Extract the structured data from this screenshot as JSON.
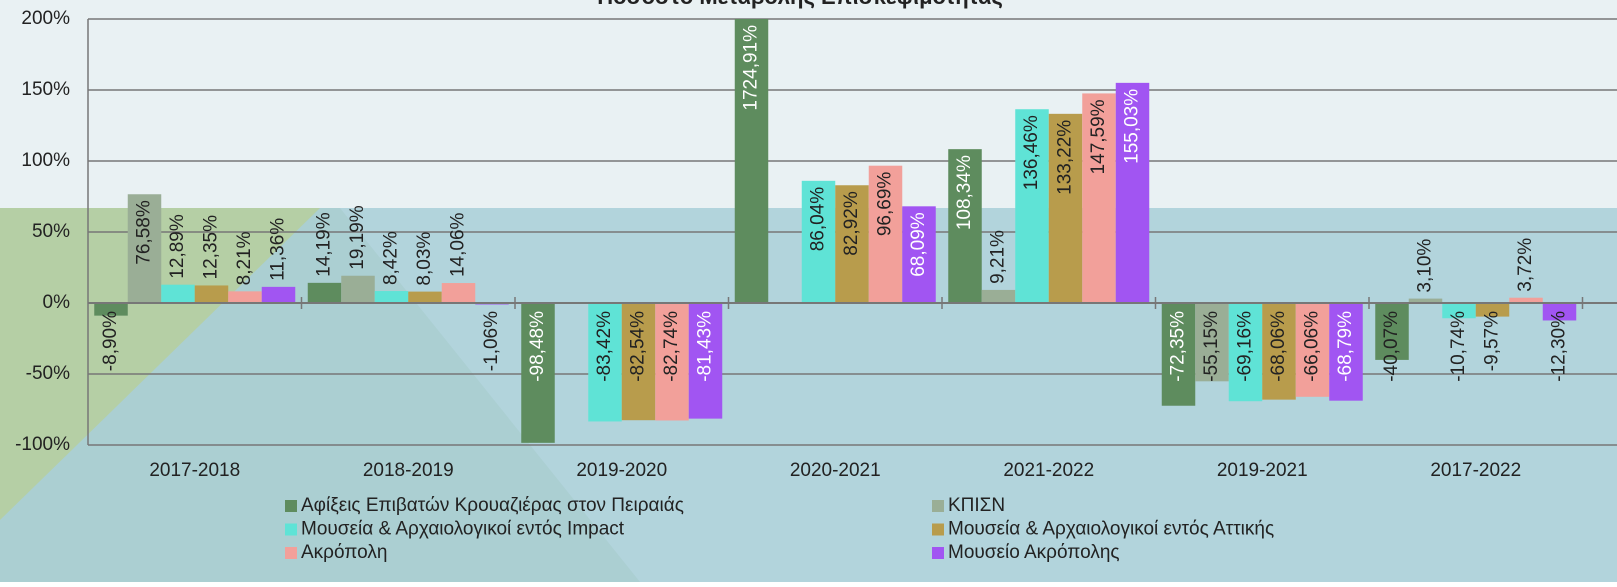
{
  "chart_data": {
    "type": "bar",
    "title": "Ποσοστό Μεταβολής Επισκεψιμότητας",
    "categories": [
      "2017-2018",
      "2018-2019",
      "2019-2020",
      "2020-2021",
      "2021-2022",
      "2019-2021",
      "2017-2022"
    ],
    "ylim": [
      -100,
      200
    ],
    "yticks": [
      {
        "value": -100,
        "label": "-100%"
      },
      {
        "value": -50,
        "label": "-50%"
      },
      {
        "value": 0,
        "label": "0%"
      },
      {
        "value": 50,
        "label": "50%"
      },
      {
        "value": 100,
        "label": "100%"
      },
      {
        "value": 150,
        "label": "150%"
      },
      {
        "value": 200,
        "label": "200%"
      }
    ],
    "grid": true,
    "series": [
      {
        "name": "Αφίξεις Επιβατών Κρουαζιέρας στον Πειραιάς",
        "color": "#5e8c5e",
        "values": [
          -8.9,
          14.19,
          -98.48,
          1724.91,
          108.34,
          -72.35,
          -40.07
        ],
        "value_labels": [
          "-8,90%",
          "14,19%",
          "-98,48%",
          "1724,91%",
          "108,34%",
          "-72,35%",
          "-40,07%"
        ]
      },
      {
        "name": "ΚΠΙΣΝ",
        "color": "#9aae96",
        "values": [
          76.58,
          19.19,
          null,
          null,
          9.21,
          -55.15,
          3.1
        ],
        "value_labels": [
          "76,58%",
          "19,19%",
          null,
          null,
          "9,21%",
          "-55,15%",
          "3,10%"
        ]
      },
      {
        "name": "Μουσεία & Αρχαιολογικοί εντός Impact",
        "color": "#5fe3d6",
        "values": [
          12.89,
          8.42,
          -83.42,
          86.04,
          136.46,
          -69.16,
          -10.74
        ],
        "value_labels": [
          "12,89%",
          "8,42%",
          "-83,42%",
          "86,04%",
          "136,46%",
          "-69,16%",
          "-10,74%"
        ]
      },
      {
        "name": "Μουσεία & Αρχαιολογικοί εντός Αττικής",
        "color": "#b89c4c",
        "values": [
          12.35,
          8.03,
          -82.54,
          82.92,
          133.22,
          -68.06,
          -9.57
        ],
        "value_labels": [
          "12,35%",
          "8,03%",
          "-82,54%",
          "82,92%",
          "133,22%",
          "-68,06%",
          "-9,57%"
        ]
      },
      {
        "name": "Ακρόπολη",
        "color": "#f2a09a",
        "values": [
          8.21,
          14.06,
          -82.74,
          96.69,
          147.59,
          -66.06,
          3.72
        ],
        "value_labels": [
          "8,21%",
          "14,06%",
          "-82,74%",
          "96,69%",
          "147,59%",
          "-66,06%",
          "3,72%"
        ]
      },
      {
        "name": "Μουσείο Ακρόπολης",
        "color": "#a155f2",
        "values": [
          11.36,
          -1.06,
          -81.43,
          68.09,
          155.03,
          -68.79,
          -12.3
        ],
        "value_labels": [
          "11,36%",
          "-1,06%",
          "-81,43%",
          "68,09%",
          "155,03%",
          "-68,79%",
          "-12,30%"
        ]
      }
    ]
  }
}
